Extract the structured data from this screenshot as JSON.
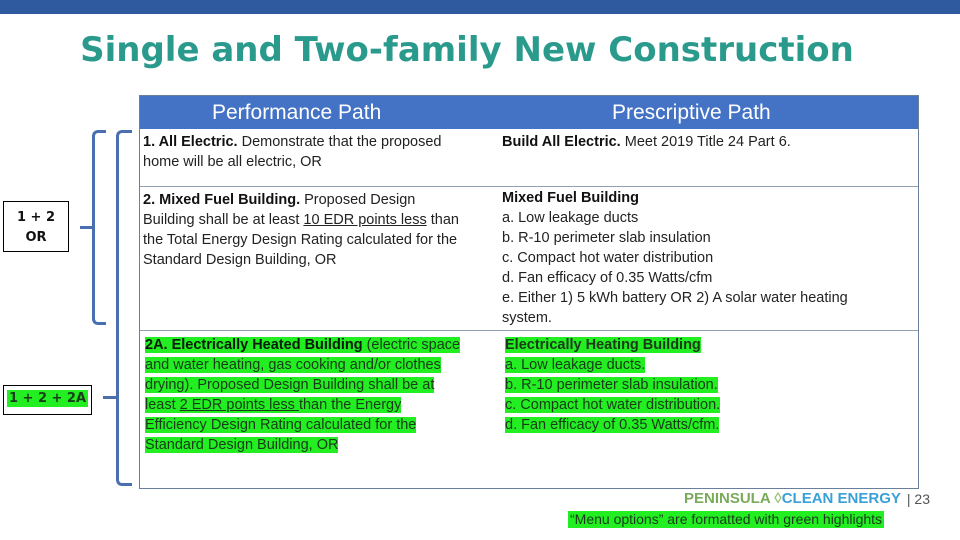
{
  "title": "Single and Two-family New Construction",
  "table": {
    "headers": [
      "Performance Path",
      "Prescriptive Path"
    ],
    "row1": {
      "perf_bold": "1. All Electric.",
      "perf_l1": " Demonstrate that the proposed",
      "perf_l2": "home will be all electric, OR",
      "pres_bold": "Build All Electric.",
      "pres_text": " Meet 2019 Title 24 Part 6."
    },
    "row2": {
      "perf_bold": "2. Mixed Fuel Building.",
      "perf_l1": " Proposed Design",
      "perf_l2a": "Building shall be at least ",
      "perf_l2u": "10 EDR points less",
      "perf_l2b": " than",
      "perf_l3": "the Total Energy Design Rating calculated for the",
      "perf_l4": "Standard Design Building, OR",
      "pres_title": "Mixed Fuel Building",
      "pres_items": [
        "a. Low leakage ducts",
        "b. R-10 perimeter slab insulation",
        "c. Compact hot water distribution",
        "d. Fan efficacy of 0.35 Watts/cfm",
        "e. Either 1) 5 kWh battery OR 2) A solar water heating",
        "system."
      ]
    },
    "row3": {
      "perf_bold": "2A. Electrically Heated Building",
      "perf_l1": " (electric space",
      "perf_l2": "and water heating, gas cooking and/or clothes",
      "perf_l3": "drying). Proposed Design Building shall be at",
      "perf_l4a": "least ",
      "perf_l4u": "2 EDR points less ",
      "perf_l4b": "than the Energy",
      "perf_l5": "Efficiency Design Rating calculated for the",
      "perf_l6": "Standard Design Building, OR",
      "pres_title": "Electrically Heating Building",
      "pres_items": [
        "a. Low leakage ducts.",
        "b. R-10 perimeter slab insulation.",
        "c. Compact hot water distribution.",
        "d. Fan efficacy of 0.35 Watts/cfm."
      ]
    }
  },
  "labels": {
    "option1_l1": "1 + 2",
    "option1_l2": "OR",
    "option2": "1 + 2 + 2A"
  },
  "footer": {
    "logo_left": "PENINSULA",
    "logo_right": "CLEAN ENERGY",
    "page": "| 23",
    "note": "“Menu options” are formatted with green highlights"
  },
  "colors": {
    "header": "#4472c4",
    "title": "#2a9a8c",
    "highlight": "#22ee22"
  }
}
